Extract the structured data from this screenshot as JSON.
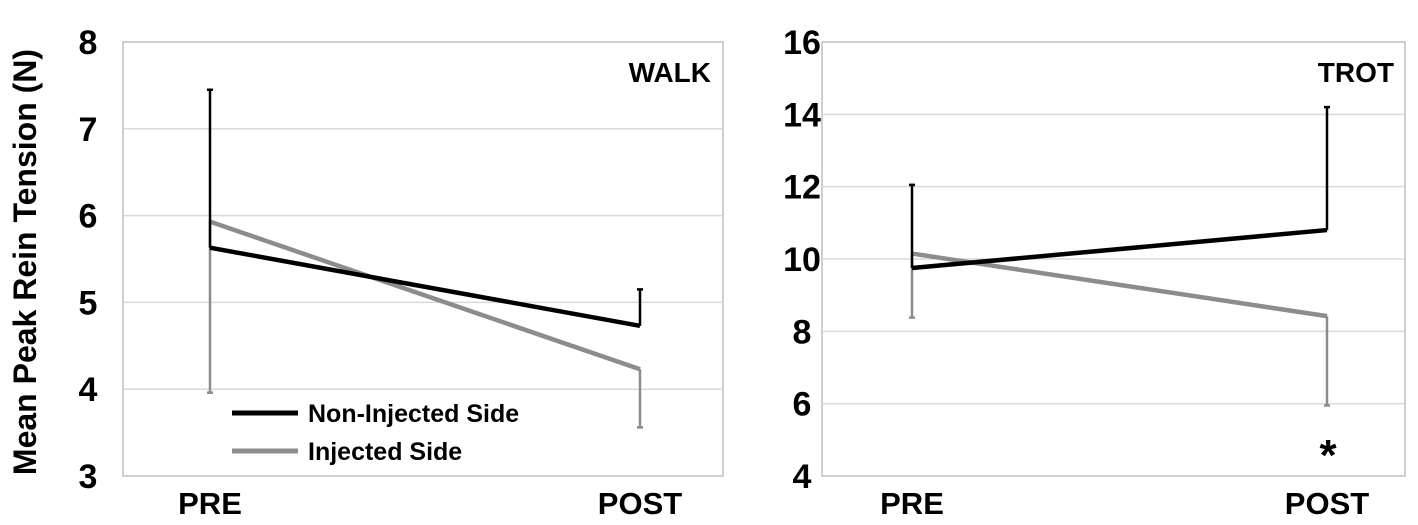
{
  "ylabel": "Mean Peak Rein Tension (N)",
  "colors": {
    "non_injected": "#000000",
    "injected": "#8c8c8c",
    "grid": "#d9d9d9",
    "frame": "#bfbfbf"
  },
  "legend": {
    "non_injected": "Non-Injected Side",
    "injected": "Injected Side"
  },
  "chart_data": [
    {
      "type": "line",
      "title": "WALK",
      "categories": [
        "PRE",
        "POST"
      ],
      "ylim": [
        3,
        8
      ],
      "yticks": [
        3,
        4,
        5,
        6,
        7,
        8
      ],
      "grid": true,
      "legend_position": "bottom-left",
      "series": [
        {
          "name": "Non-Injected Side",
          "values": [
            5.63,
            4.73
          ],
          "error": [
            1.82,
            0.42
          ],
          "error_dir": [
            "up",
            "up"
          ]
        },
        {
          "name": "Injected Side",
          "values": [
            5.93,
            4.23
          ],
          "error": [
            1.97,
            0.67
          ],
          "error_dir": [
            "down",
            "down"
          ]
        }
      ],
      "annotation": ""
    },
    {
      "type": "line",
      "title": "TROT",
      "categories": [
        "PRE",
        "POST"
      ],
      "ylim": [
        4,
        16
      ],
      "yticks": [
        4,
        6,
        8,
        10,
        12,
        14,
        16
      ],
      "grid": true,
      "series": [
        {
          "name": "Non-Injected Side",
          "values": [
            9.75,
            10.8
          ],
          "error": [
            2.3,
            3.4
          ],
          "error_dir": [
            "up",
            "up"
          ]
        },
        {
          "name": "Injected Side",
          "values": [
            10.15,
            8.42
          ],
          "error": [
            1.77,
            2.47
          ],
          "error_dir": [
            "down",
            "down"
          ]
        }
      ],
      "annotation": "*"
    }
  ]
}
